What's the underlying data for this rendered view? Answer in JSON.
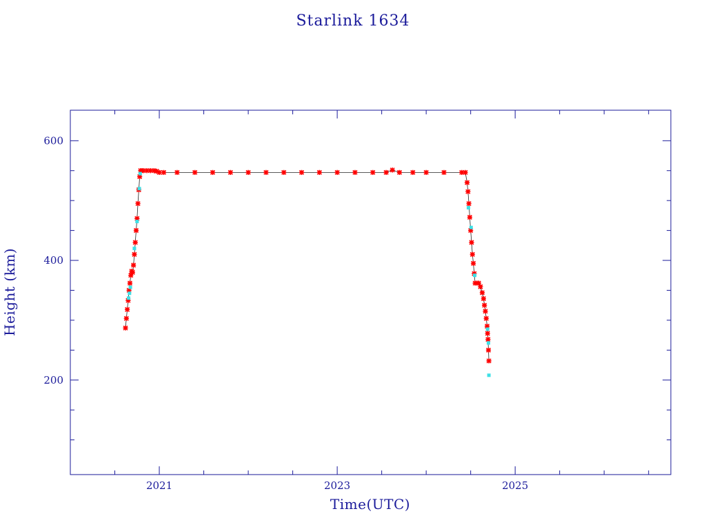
{
  "chart_data": {
    "type": "scatter",
    "title": "Starlink 1634",
    "xlabel": "Time(UTC)",
    "ylabel": "Height (km)",
    "xlim": [
      2020.0,
      2026.75
    ],
    "ylim": [
      42,
      651
    ],
    "x_ticks": [
      {
        "value": 2021,
        "label": "2021"
      },
      {
        "value": 2023,
        "label": "2023"
      },
      {
        "value": 2025,
        "label": "2025"
      }
    ],
    "y_ticks": [
      {
        "value": 200,
        "label": "200"
      },
      {
        "value": 400,
        "label": "400"
      },
      {
        "value": 600,
        "label": "600"
      }
    ],
    "grid": false,
    "colors": {
      "axis": "#1a1a9a",
      "primary": "#ff0000",
      "secondary": "#3fe0e6",
      "line": "#222222"
    },
    "series": [
      {
        "marker": "star",
        "color": "#ff0000",
        "values": [
          [
            2020.62,
            287
          ],
          [
            2020.63,
            303
          ],
          [
            2020.64,
            318
          ],
          [
            2020.65,
            333
          ],
          [
            2020.66,
            350
          ],
          [
            2020.67,
            362
          ],
          [
            2020.68,
            375
          ],
          [
            2020.69,
            382
          ],
          [
            2020.7,
            380
          ],
          [
            2020.71,
            392
          ],
          [
            2020.72,
            410
          ],
          [
            2020.73,
            430
          ],
          [
            2020.74,
            450
          ],
          [
            2020.75,
            470
          ],
          [
            2020.76,
            495
          ],
          [
            2020.77,
            518
          ],
          [
            2020.78,
            540
          ],
          [
            2020.79,
            550
          ],
          [
            2020.82,
            550
          ],
          [
            2020.86,
            550
          ],
          [
            2020.9,
            550
          ],
          [
            2020.94,
            550
          ],
          [
            2020.97,
            549
          ],
          [
            2021.0,
            547
          ],
          [
            2021.05,
            547
          ],
          [
            2021.2,
            547
          ],
          [
            2021.4,
            547
          ],
          [
            2021.6,
            547
          ],
          [
            2021.8,
            547
          ],
          [
            2022.0,
            547
          ],
          [
            2022.2,
            547
          ],
          [
            2022.4,
            547
          ],
          [
            2022.6,
            547
          ],
          [
            2022.8,
            547
          ],
          [
            2023.0,
            547
          ],
          [
            2023.2,
            547
          ],
          [
            2023.4,
            547
          ],
          [
            2023.55,
            547
          ],
          [
            2023.62,
            551
          ],
          [
            2023.7,
            547
          ],
          [
            2023.85,
            547
          ],
          [
            2024.0,
            547
          ],
          [
            2024.2,
            547
          ],
          [
            2024.4,
            547
          ],
          [
            2024.44,
            547
          ],
          [
            2024.46,
            530
          ],
          [
            2024.47,
            515
          ],
          [
            2024.48,
            495
          ],
          [
            2024.49,
            472
          ],
          [
            2024.5,
            450
          ],
          [
            2024.51,
            430
          ],
          [
            2024.52,
            410
          ],
          [
            2024.53,
            395
          ],
          [
            2024.54,
            378
          ],
          [
            2024.55,
            362
          ],
          [
            2024.57,
            362
          ],
          [
            2024.59,
            362
          ],
          [
            2024.61,
            356
          ],
          [
            2024.63,
            346
          ],
          [
            2024.645,
            336
          ],
          [
            2024.655,
            325
          ],
          [
            2024.665,
            315
          ],
          [
            2024.675,
            303
          ],
          [
            2024.685,
            290
          ],
          [
            2024.69,
            278
          ],
          [
            2024.695,
            268
          ],
          [
            2024.7,
            250
          ],
          [
            2024.705,
            232
          ]
        ]
      },
      {
        "marker": "diamond",
        "color": "#3fe0e6",
        "values": [
          [
            2020.655,
            337
          ],
          [
            2020.665,
            345
          ],
          [
            2020.675,
            355
          ],
          [
            2020.72,
            420
          ],
          [
            2020.75,
            465
          ],
          [
            2020.775,
            520
          ],
          [
            2020.785,
            545
          ],
          [
            2024.475,
            488
          ],
          [
            2024.505,
            455
          ],
          [
            2024.545,
            375
          ],
          [
            2024.69,
            285
          ],
          [
            2024.7,
            262
          ],
          [
            2024.705,
            208
          ]
        ]
      }
    ]
  }
}
